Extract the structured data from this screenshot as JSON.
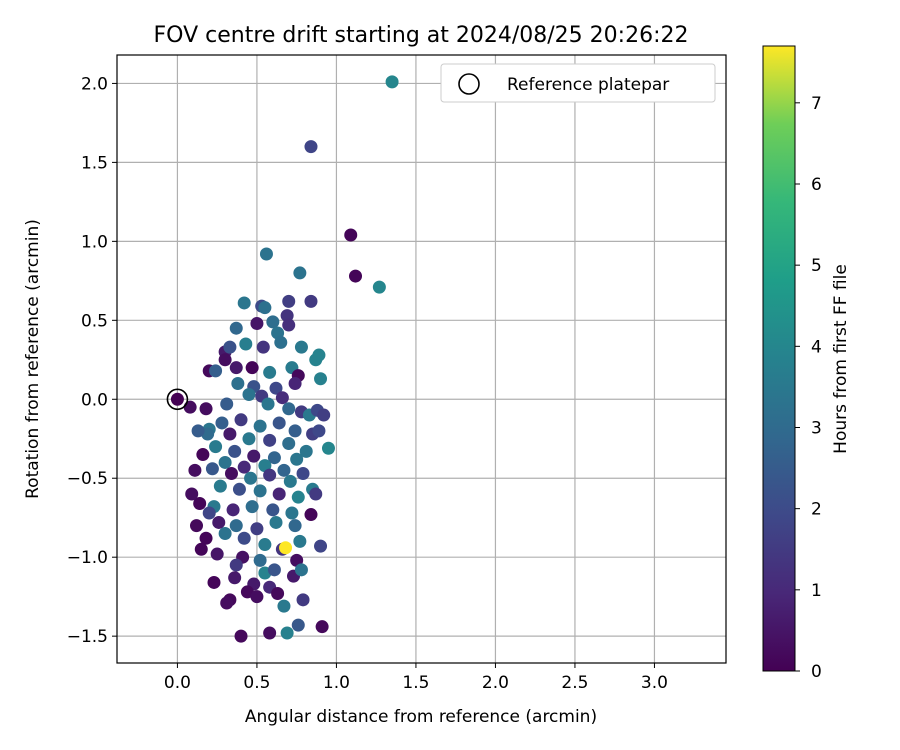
{
  "chart_data": {
    "type": "scatter",
    "title": "FOV centre drift starting at 2024/08/25 20:26:22",
    "xlabel": "Angular distance from reference (arcmin)",
    "ylabel": "Rotation from reference (arcmin)",
    "xlim": [
      -0.38,
      3.45
    ],
    "ylim": [
      -1.67,
      2.18
    ],
    "xticks": [
      "0.0",
      "0.5",
      "1.0",
      "1.5",
      "2.0",
      "2.5",
      "3.0"
    ],
    "yticks": [
      "−1.5",
      "−1.0",
      "−0.5",
      "0.0",
      "0.5",
      "1.0",
      "1.5",
      "2.0"
    ],
    "xtick_values": [
      0,
      0.5,
      1,
      1.5,
      2,
      2.5,
      3
    ],
    "ytick_values": [
      -1.5,
      -1,
      -0.5,
      0,
      0.5,
      1,
      1.5,
      2
    ],
    "grid": true,
    "legend": {
      "position": "upper right",
      "entries": [
        "Reference platepar"
      ]
    },
    "reference_point": {
      "x": 0.0,
      "y": 0.0
    },
    "colorbar": {
      "label": "Hours from first FF file",
      "min": 0,
      "max": 7.7,
      "ticks": [
        "0",
        "1",
        "2",
        "3",
        "4",
        "5",
        "6",
        "7"
      ],
      "tick_values": [
        0,
        1,
        2,
        3,
        4,
        5,
        6,
        7
      ],
      "colormap": "viridis"
    },
    "points": [
      [
        1.35,
        2.01,
        4.0
      ],
      [
        0.84,
        1.6,
        1.8
      ],
      [
        1.09,
        1.04,
        0.1
      ],
      [
        1.12,
        0.78,
        0.1
      ],
      [
        1.27,
        0.71,
        4.0
      ],
      [
        0.56,
        0.92,
        3.3
      ],
      [
        0.77,
        0.8,
        3.3
      ],
      [
        0.42,
        0.61,
        3.4
      ],
      [
        0.53,
        0.59,
        2.0
      ],
      [
        0.55,
        0.58,
        3.2
      ],
      [
        0.7,
        0.62,
        1.6
      ],
      [
        0.84,
        0.62,
        1.5
      ],
      [
        0.37,
        0.45,
        2.9
      ],
      [
        0.5,
        0.48,
        0.5
      ],
      [
        0.6,
        0.49,
        3.1
      ],
      [
        0.69,
        0.53,
        1.3
      ],
      [
        0.7,
        0.47,
        1.2
      ],
      [
        0.63,
        0.42,
        3.3
      ],
      [
        0.3,
        0.3,
        0.6
      ],
      [
        0.33,
        0.33,
        2.2
      ],
      [
        0.43,
        0.35,
        3.7
      ],
      [
        0.54,
        0.33,
        1.3
      ],
      [
        0.65,
        0.36,
        3.2
      ],
      [
        0.78,
        0.33,
        3.5
      ],
      [
        0.87,
        0.25,
        3.9
      ],
      [
        0.89,
        0.28,
        3.9
      ],
      [
        0.9,
        0.13,
        3.8
      ],
      [
        0.2,
        0.18,
        0.2
      ],
      [
        0.24,
        0.18,
        2.6
      ],
      [
        0.3,
        0.25,
        0.3
      ],
      [
        0.37,
        0.2,
        0.6
      ],
      [
        0.47,
        0.2,
        0.1
      ],
      [
        0.58,
        0.17,
        3.6
      ],
      [
        0.72,
        0.2,
        3.6
      ],
      [
        0.76,
        0.15,
        0.2
      ],
      [
        0.38,
        0.1,
        3.2
      ],
      [
        0.48,
        0.08,
        2.2
      ],
      [
        0.62,
        0.07,
        1.9
      ],
      [
        0.74,
        0.1,
        0.9
      ],
      [
        0.45,
        0.03,
        3.3
      ],
      [
        0.53,
        0.02,
        1.5
      ],
      [
        0.66,
        0.01,
        1.1
      ],
      [
        0.18,
        -0.06,
        0.3
      ],
      [
        0.31,
        -0.03,
        2.5
      ],
      [
        0.57,
        -0.03,
        3.4
      ],
      [
        0.7,
        -0.06,
        2.9
      ],
      [
        0.78,
        -0.08,
        1.5
      ],
      [
        0.83,
        -0.1,
        3.5
      ],
      [
        0.88,
        -0.07,
        1.9
      ],
      [
        0.92,
        -0.1,
        1.6
      ],
      [
        0.2,
        -0.19,
        3.4
      ],
      [
        0.28,
        -0.15,
        2.6
      ],
      [
        0.4,
        -0.13,
        1.5
      ],
      [
        0.52,
        -0.17,
        3.3
      ],
      [
        0.64,
        -0.15,
        2.3
      ],
      [
        0.74,
        -0.2,
        2.6
      ],
      [
        0.85,
        -0.22,
        1.6
      ],
      [
        0.89,
        -0.2,
        1.9
      ],
      [
        0.19,
        -0.22,
        3.0
      ],
      [
        0.33,
        -0.22,
        0.6
      ],
      [
        0.45,
        -0.25,
        3.5
      ],
      [
        0.58,
        -0.26,
        1.7
      ],
      [
        0.7,
        -0.28,
        3.1
      ],
      [
        0.81,
        -0.33,
        3.4
      ],
      [
        0.95,
        -0.31,
        4.0
      ],
      [
        0.24,
        -0.3,
        3.6
      ],
      [
        0.36,
        -0.33,
        2.2
      ],
      [
        0.48,
        -0.36,
        0.6
      ],
      [
        0.61,
        -0.37,
        2.8
      ],
      [
        0.75,
        -0.38,
        3.4
      ],
      [
        0.16,
        -0.35,
        0.1
      ],
      [
        0.3,
        -0.4,
        3.3
      ],
      [
        0.42,
        -0.43,
        1.0
      ],
      [
        0.55,
        -0.42,
        3.7
      ],
      [
        0.67,
        -0.45,
        2.8
      ],
      [
        0.79,
        -0.47,
        1.9
      ],
      [
        0.22,
        -0.44,
        2.4
      ],
      [
        0.34,
        -0.47,
        0.3
      ],
      [
        0.46,
        -0.5,
        3.4
      ],
      [
        0.58,
        -0.48,
        1.4
      ],
      [
        0.71,
        -0.52,
        3.5
      ],
      [
        0.27,
        -0.55,
        3.6
      ],
      [
        0.39,
        -0.57,
        2.1
      ],
      [
        0.52,
        -0.58,
        3.3
      ],
      [
        0.64,
        -0.6,
        0.9
      ],
      [
        0.76,
        -0.62,
        3.9
      ],
      [
        0.85,
        -0.57,
        3.6
      ],
      [
        0.87,
        -0.6,
        1.5
      ],
      [
        0.14,
        -0.66,
        0.1
      ],
      [
        0.23,
        -0.68,
        3.5
      ],
      [
        0.35,
        -0.7,
        0.9
      ],
      [
        0.47,
        -0.68,
        3.1
      ],
      [
        0.6,
        -0.7,
        2.3
      ],
      [
        0.72,
        -0.72,
        3.4
      ],
      [
        0.2,
        -0.72,
        1.8
      ],
      [
        0.26,
        -0.78,
        0.6
      ],
      [
        0.37,
        -0.8,
        3.0
      ],
      [
        0.5,
        -0.82,
        1.6
      ],
      [
        0.62,
        -0.78,
        3.5
      ],
      [
        0.74,
        -0.8,
        2.9
      ],
      [
        0.84,
        -0.73,
        0.1
      ],
      [
        0.18,
        -0.88,
        0.1
      ],
      [
        0.3,
        -0.85,
        3.3
      ],
      [
        0.42,
        -0.88,
        2.0
      ],
      [
        0.55,
        -0.92,
        3.6
      ],
      [
        0.66,
        -0.95,
        1.3
      ],
      [
        0.77,
        -0.9,
        3.5
      ],
      [
        0.9,
        -0.93,
        1.8
      ],
      [
        0.25,
        -0.98,
        0.5
      ],
      [
        0.41,
        -1.0,
        0.4
      ],
      [
        0.52,
        -1.02,
        3.0
      ],
      [
        0.68,
        -0.94,
        7.7
      ],
      [
        0.75,
        -1.02,
        0.3
      ],
      [
        0.37,
        -1.05,
        1.5
      ],
      [
        0.55,
        -1.1,
        3.9
      ],
      [
        0.61,
        -1.08,
        2.3
      ],
      [
        0.73,
        -1.12,
        0.6
      ],
      [
        0.78,
        -1.08,
        3.3
      ],
      [
        0.36,
        -1.13,
        0.6
      ],
      [
        0.48,
        -1.17,
        0.6
      ],
      [
        0.58,
        -1.19,
        1.0
      ],
      [
        0.23,
        -1.16,
        0.1
      ],
      [
        0.44,
        -1.22,
        0.2
      ],
      [
        0.5,
        -1.25,
        0.3
      ],
      [
        0.63,
        -1.23,
        0.2
      ],
      [
        0.67,
        -1.31,
        3.5
      ],
      [
        0.79,
        -1.27,
        1.5
      ],
      [
        0.33,
        -1.27,
        0.2
      ],
      [
        0.31,
        -1.29,
        0.3
      ],
      [
        0.4,
        -1.5,
        0.2
      ],
      [
        0.58,
        -1.48,
        0.3
      ],
      [
        0.69,
        -1.48,
        3.8
      ],
      [
        0.76,
        -1.43,
        2.4
      ],
      [
        0.91,
        -1.44,
        0.2
      ],
      [
        0.08,
        -0.05,
        0.3
      ],
      [
        0.13,
        -0.2,
        2.5
      ],
      [
        0.11,
        -0.45,
        0.3
      ],
      [
        0.12,
        -0.8,
        0.2
      ],
      [
        0.09,
        -0.6,
        0.3
      ],
      [
        0.15,
        -0.95,
        0.1
      ]
    ]
  }
}
